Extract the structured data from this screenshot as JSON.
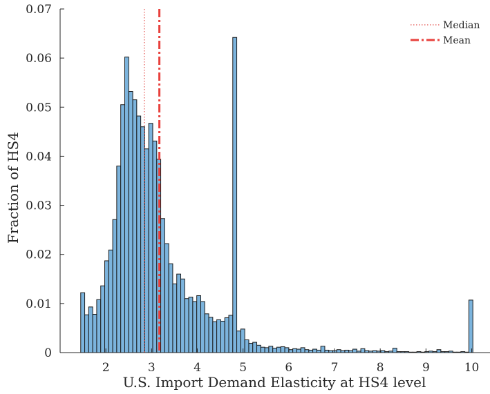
{
  "chart_data": {
    "type": "bar",
    "title": "",
    "xlabel": "U.S. Import Demand Elasticity at HS4 level",
    "ylabel": "Fraction of HS4",
    "xlim": [
      1.0,
      10.4
    ],
    "ylim": [
      0,
      0.07
    ],
    "xticks": [
      "2",
      "3",
      "4",
      "5",
      "6",
      "7",
      "8",
      "9",
      "10"
    ],
    "yticks": [
      "0",
      "0.01",
      "0.02",
      "0.03",
      "0.04",
      "0.05",
      "0.06",
      "0.07"
    ],
    "bin_start": 1.45,
    "bin_width": 0.0875,
    "values": [
      0.0122,
      0.0077,
      0.0093,
      0.0078,
      0.0108,
      0.0136,
      0.0187,
      0.0209,
      0.0271,
      0.038,
      0.0505,
      0.0602,
      0.0532,
      0.0515,
      0.0482,
      0.046,
      0.0415,
      0.0467,
      0.0431,
      0.0394,
      0.0273,
      0.0222,
      0.0181,
      0.014,
      0.016,
      0.015,
      0.011,
      0.0113,
      0.0104,
      0.0116,
      0.0104,
      0.0079,
      0.0072,
      0.0063,
      0.0067,
      0.0064,
      0.0071,
      0.0076,
      0.0642,
      0.0044,
      0.0048,
      0.0026,
      0.0019,
      0.0021,
      0.0015,
      0.0011,
      0.001,
      0.0013,
      0.0009,
      0.0011,
      0.0012,
      0.001,
      0.0006,
      0.0008,
      0.0007,
      0.001,
      0.0006,
      0.0005,
      0.0007,
      0.0005,
      0.0013,
      0.0005,
      0.0004,
      0.0004,
      0.0006,
      0.0004,
      0.0005,
      0.0004,
      0.0007,
      0.0003,
      0.0008,
      0.0004,
      0.0003,
      0.0004,
      0.0003,
      0.0004,
      0.0002,
      0.0003,
      0.0009,
      0.0002,
      0.0002,
      0.0002,
      0.0001,
      0.0001,
      0.0002,
      0.0001,
      0.0002,
      0.0003,
      0.0002,
      0.0006,
      0.0002,
      0.0002,
      0.0003,
      0.0001,
      0.0001,
      0.0002,
      0.0001,
      0.0107
    ],
    "lines": [
      {
        "name": "Median",
        "x": 2.84,
        "style": "dotted",
        "color": "#e8706e"
      },
      {
        "name": "Mean",
        "x": 3.17,
        "style": "dashdot",
        "color": "#e8403c"
      }
    ],
    "bar_fill": "#7cb4dd",
    "bar_edge": "#1a1a1a",
    "legend_position": "top-right",
    "grid": false
  }
}
